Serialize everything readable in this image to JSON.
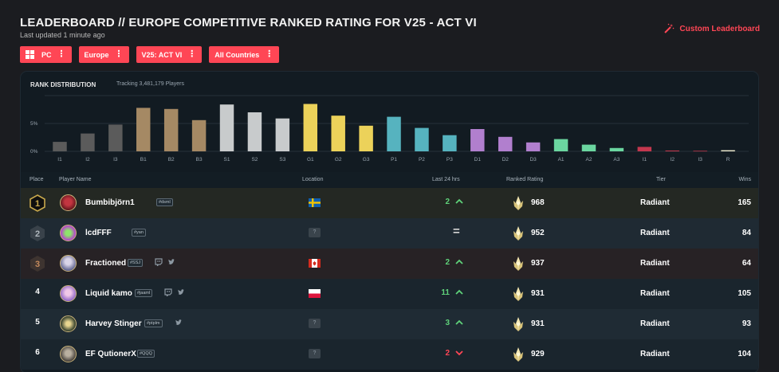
{
  "header": {
    "title": "LEADERBOARD // EUROPE COMPETITIVE RANKED RATING FOR V25 - ACT VI",
    "updated": "Last updated 1 minute ago",
    "custom_leaderboard": "Custom Leaderboard"
  },
  "filters": [
    {
      "label": "PC",
      "icon": "windows-icon"
    },
    {
      "label": "Europe"
    },
    {
      "label": "V25: ACT VI"
    },
    {
      "label": "All Countries"
    }
  ],
  "distribution": {
    "title": "RANK DISTRIBUTION",
    "tracking": "Tracking 3,481,179 Players"
  },
  "chart_data": {
    "type": "bar",
    "title": "RANK DISTRIBUTION",
    "xlabel": "",
    "ylabel": "",
    "y_ticks": [
      "0%",
      "5%"
    ],
    "ylim": [
      0,
      10
    ],
    "categories": [
      "I1",
      "I2",
      "I3",
      "B1",
      "B2",
      "B3",
      "S1",
      "S2",
      "S3",
      "G1",
      "G2",
      "G3",
      "P1",
      "P2",
      "P3",
      "D1",
      "D2",
      "D3",
      "A1",
      "A2",
      "A3",
      "I1",
      "I2",
      "I3",
      "R"
    ],
    "values": [
      1.7,
      3.2,
      4.8,
      7.8,
      7.6,
      5.6,
      8.4,
      7.0,
      5.9,
      8.5,
      6.4,
      4.6,
      6.2,
      4.2,
      2.9,
      4.0,
      2.6,
      1.6,
      2.2,
      1.2,
      0.6,
      0.8,
      0.15,
      0.1,
      0.2
    ],
    "colors": [
      "#5b5b5b",
      "#5b5b5b",
      "#5b5b5b",
      "#a58964",
      "#a58964",
      "#a58964",
      "#c8cbcc",
      "#c8cbcc",
      "#c8cbcc",
      "#ecd25a",
      "#ecd25a",
      "#ecd25a",
      "#56b3bf",
      "#56b3bf",
      "#56b3bf",
      "#b17fce",
      "#b17fce",
      "#b17fce",
      "#6bd6a0",
      "#6bd6a0",
      "#6bd6a0",
      "#c4374e",
      "#c4374e",
      "#c4374e",
      "#f2f0d2"
    ],
    "grid": true
  },
  "table": {
    "headers": {
      "place": "Place",
      "player": "Player Name",
      "location": "Location",
      "last24": "Last 24 hrs",
      "rating": "Ranked Rating",
      "tier": "Tier",
      "wins": "Wins"
    },
    "rows": [
      {
        "place": "1",
        "name": "Bumbibjörn1",
        "tag": "#dsml",
        "flag": "sweden",
        "delta": "2",
        "trend": "up",
        "rating": "968",
        "tier": "Radiant",
        "wins": "165",
        "social": []
      },
      {
        "place": "2",
        "name": "lcdFFF",
        "tag": "#yan",
        "flag": "unknown",
        "flag_text": "?",
        "delta": "",
        "trend": "same",
        "trend_text": "=",
        "rating": "952",
        "tier": "Radiant",
        "wins": "84",
        "social": []
      },
      {
        "place": "3",
        "name": "Fractioned",
        "tag": "#SSJ",
        "flag": "canada",
        "delta": "2",
        "trend": "up",
        "rating": "937",
        "tier": "Radiant",
        "wins": "64",
        "social": [
          "twitch-icon",
          "twitter-icon"
        ]
      },
      {
        "place": "4",
        "name": "Liquid kamo",
        "tag": "#jaaml",
        "flag": "poland",
        "delta": "11",
        "trend": "up",
        "rating": "931",
        "tier": "Radiant",
        "wins": "105",
        "social": [
          "twitch-icon",
          "twitter-icon"
        ]
      },
      {
        "place": "5",
        "name": "Harvey Stinger",
        "tag": "#ptplm",
        "flag": "unknown",
        "flag_text": "?",
        "delta": "3",
        "trend": "up",
        "rating": "931",
        "tier": "Radiant",
        "wins": "93",
        "social": [
          "twitter-icon"
        ]
      },
      {
        "place": "6",
        "name": "EF QutionerX",
        "tag": "#QQQ",
        "flag": "unknown",
        "flag_text": "?",
        "delta": "2",
        "trend": "down",
        "rating": "929",
        "tier": "Radiant",
        "wins": "104",
        "social": []
      }
    ]
  },
  "colors": {
    "accent": "#ff4655",
    "up": "#5fd27a",
    "down": "#ff4655"
  }
}
